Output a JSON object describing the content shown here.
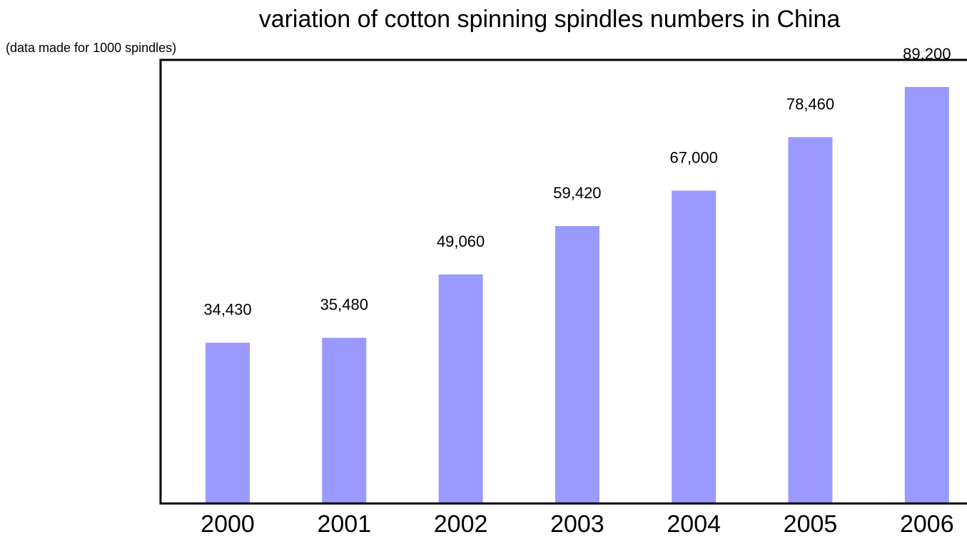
{
  "chart_data": {
    "type": "bar",
    "title": "variation of cotton spinning spindles numbers in China",
    "subtitle": "(data made for 1000 spindles)",
    "xlabel": "",
    "ylabel": "",
    "categories": [
      "2000",
      "2001",
      "2002",
      "2003",
      "2004",
      "2005",
      "2006"
    ],
    "values": [
      34430,
      35480,
      49060,
      59420,
      67000,
      78460,
      89200
    ],
    "value_labels": [
      "34,430",
      "35,480",
      "49,060",
      "59,420",
      "67,000",
      "78,460",
      "89,200"
    ],
    "ylim": [
      0,
      95000
    ],
    "grid": false,
    "legend": "none",
    "bar_color": "#9999ff",
    "axis_color": "#000000",
    "background_color": "#ffffff"
  }
}
